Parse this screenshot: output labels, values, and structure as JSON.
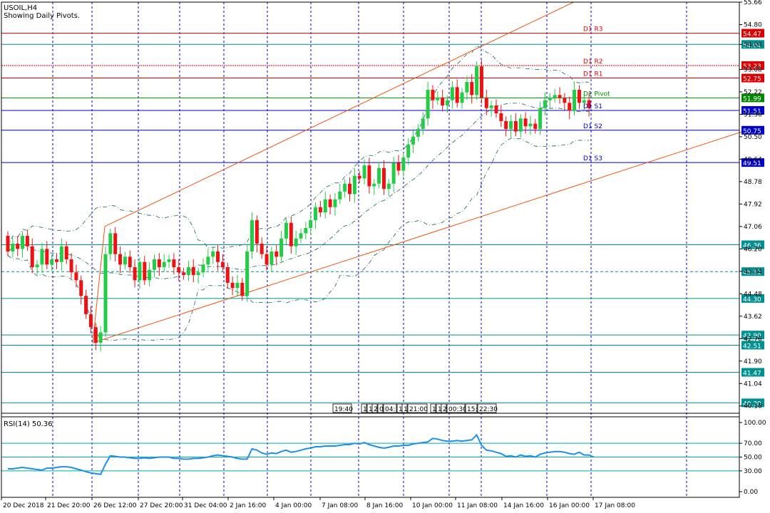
{
  "header": {
    "symbol_line": "USOIL,H4",
    "subtitle": "Showing Daily Pivots."
  },
  "colors": {
    "background": "#ffffff",
    "frame": "#000000",
    "grid": "#0000cc",
    "bull": "#22cc44",
    "bear": "#ee1111",
    "channel": "#ee5511",
    "bands": "#1f5f5f",
    "pivot_resistance": "#dd0000",
    "pivot_pivot": "#008800",
    "pivot_support": "#0000cc",
    "hline": "#009090",
    "rsi_line": "#1e8fe8",
    "rsi_level": "#00aaaa"
  },
  "chart_data": [
    {
      "type": "candlestick",
      "ylim": [
        39.9,
        55.66
      ],
      "price_ticks": [
        "55.66",
        "54.80",
        "54.04",
        "53.08",
        "52.22",
        "51.36",
        "50.50",
        "49.64",
        "48.78",
        "47.92",
        "47.06",
        "46.20",
        "45.34",
        "44.48",
        "43.62",
        "42.76",
        "41.90",
        "41.04",
        "40.18"
      ],
      "x_labels": [
        "20 Dec 2018",
        "21 Dec 20:00",
        "26 Dec 12:00",
        "27 Dec 20:00",
        "31 Dec 04:00",
        "2 Jan 16:00",
        "4 Jan 00:00",
        "7 Jan 08:00",
        "8 Jan 16:00",
        "10 Jan 00:00",
        "11 Jan 08:00",
        "14 Jan 16:00",
        "16 Jan 00:00",
        "17 Jan 08:00"
      ],
      "session_separators": 12,
      "pivots": [
        {
          "name": "D1 R3",
          "value": 54.47,
          "kind": "resistance",
          "label": "54.47"
        },
        {
          "name": "D1 R2",
          "value": 53.23,
          "kind": "resistance",
          "label": "53.23"
        },
        {
          "name": "D1 R1",
          "value": 52.75,
          "kind": "resistance",
          "label": "52.75"
        },
        {
          "name": "D1 Pivot",
          "value": 51.99,
          "kind": "pivot",
          "label": "51.99"
        },
        {
          "name": "D1 S1",
          "value": 51.51,
          "kind": "support",
          "label": "51.51"
        },
        {
          "name": "D1 S2",
          "value": 50.75,
          "kind": "support",
          "label": "50.75"
        },
        {
          "name": "D1 S3",
          "value": 49.51,
          "kind": "support",
          "label": "49.51"
        }
      ],
      "hlines": [
        {
          "value": 54.04,
          "label": "54.04",
          "style": "solid"
        },
        {
          "value": 46.36,
          "label": "46.36",
          "style": "solid"
        },
        {
          "value": 45.33,
          "label": "45.33",
          "style": "dashed"
        },
        {
          "value": 44.3,
          "label": "44.30",
          "style": "solid"
        },
        {
          "value": 42.9,
          "label": "42.90",
          "style": "solid"
        },
        {
          "value": 42.51,
          "label": "42.51",
          "style": "solid"
        },
        {
          "value": 41.47,
          "label": "41.47",
          "style": "solid"
        },
        {
          "value": 40.3,
          "label": "40.30",
          "style": "solid"
        }
      ],
      "channel": {
        "upper": [
          {
            "bar": 0,
            "price": 47.06
          },
          {
            "bar": 96,
            "price": 55.66
          }
        ],
        "lower": [
          {
            "bar": 0,
            "price": 42.6
          },
          {
            "bar": 121,
            "price": 50.8
          }
        ]
      },
      "candles": [
        [
          46.7,
          46.1
        ],
        [
          46.1,
          46.4
        ],
        [
          46.4,
          46.2
        ],
        [
          46.2,
          46.7
        ],
        [
          46.7,
          46.3
        ],
        [
          46.3,
          45.5
        ],
        [
          45.5,
          45.6
        ],
        [
          45.6,
          46.2
        ],
        [
          46.2,
          45.6
        ],
        [
          45.6,
          45.8
        ],
        [
          45.8,
          45.7
        ],
        [
          45.7,
          46.3
        ],
        [
          46.3,
          45.8
        ],
        [
          45.8,
          45.3
        ],
        [
          45.3,
          45.0
        ],
        [
          45.0,
          44.4
        ],
        [
          44.4,
          43.7
        ],
        [
          43.7,
          43.2
        ],
        [
          43.2,
          42.6
        ],
        [
          42.6,
          43.0
        ],
        [
          43.0,
          46.0
        ],
        [
          46.0,
          46.8
        ],
        [
          46.8,
          46.0
        ],
        [
          46.0,
          45.6
        ],
        [
          45.6,
          45.9
        ],
        [
          45.9,
          45.5
        ],
        [
          45.5,
          45.0
        ],
        [
          45.0,
          45.7
        ],
        [
          45.7,
          45.0
        ],
        [
          45.0,
          45.4
        ],
        [
          45.4,
          45.8
        ],
        [
          45.8,
          45.5
        ],
        [
          45.5,
          45.7
        ],
        [
          45.7,
          45.8
        ],
        [
          45.8,
          45.5
        ],
        [
          45.5,
          45.3
        ],
        [
          45.3,
          45.2
        ],
        [
          45.2,
          45.5
        ],
        [
          45.5,
          45.2
        ],
        [
          45.2,
          45.3
        ],
        [
          45.3,
          45.6
        ],
        [
          45.6,
          45.9
        ],
        [
          45.9,
          46.1
        ],
        [
          46.1,
          45.7
        ],
        [
          45.7,
          45.5
        ],
        [
          45.5,
          44.9
        ],
        [
          44.9,
          44.7
        ],
        [
          44.7,
          44.9
        ],
        [
          44.9,
          44.4
        ],
        [
          44.4,
          46.1
        ],
        [
          46.1,
          47.3
        ],
        [
          47.3,
          46.4
        ],
        [
          46.4,
          46.0
        ],
        [
          46.0,
          45.6
        ],
        [
          45.6,
          46.1
        ],
        [
          46.1,
          45.9
        ],
        [
          45.9,
          46.6
        ],
        [
          46.6,
          47.2
        ],
        [
          47.2,
          46.3
        ],
        [
          46.3,
          46.6
        ],
        [
          46.6,
          46.8
        ],
        [
          46.8,
          47.0
        ],
        [
          47.0,
          47.3
        ],
        [
          47.3,
          47.8
        ],
        [
          47.8,
          47.6
        ],
        [
          47.6,
          48.1
        ],
        [
          48.1,
          47.8
        ],
        [
          47.8,
          48.1
        ],
        [
          48.1,
          48.4
        ],
        [
          48.4,
          48.7
        ],
        [
          48.7,
          48.3
        ],
        [
          48.3,
          49.0
        ],
        [
          49.0,
          48.9
        ],
        [
          48.9,
          49.4
        ],
        [
          49.4,
          48.6
        ],
        [
          48.6,
          48.7
        ],
        [
          48.7,
          49.3
        ],
        [
          49.3,
          48.5
        ],
        [
          48.5,
          48.7
        ],
        [
          48.7,
          49.5
        ],
        [
          49.5,
          49.2
        ],
        [
          49.2,
          49.7
        ],
        [
          49.7,
          50.2
        ],
        [
          50.2,
          50.5
        ],
        [
          50.5,
          50.8
        ],
        [
          50.8,
          51.2
        ],
        [
          51.2,
          52.3
        ],
        [
          52.3,
          51.9
        ],
        [
          51.9,
          52.0
        ],
        [
          52.0,
          51.7
        ],
        [
          51.7,
          51.9
        ],
        [
          51.9,
          52.4
        ],
        [
          52.4,
          51.8
        ],
        [
          51.8,
          52.2
        ],
        [
          52.2,
          52.6
        ],
        [
          52.6,
          52.1
        ],
        [
          52.1,
          53.2
        ],
        [
          53.2,
          52.0
        ],
        [
          52.0,
          51.6
        ],
        [
          51.6,
          51.7
        ],
        [
          51.7,
          51.4
        ],
        [
          51.4,
          51.1
        ],
        [
          51.1,
          50.8
        ],
        [
          50.8,
          51.1
        ],
        [
          51.1,
          50.7
        ],
        [
          50.7,
          51.2
        ],
        [
          51.2,
          50.9
        ],
        [
          50.9,
          51.0
        ],
        [
          51.0,
          50.8
        ],
        [
          50.8,
          51.6
        ],
        [
          51.6,
          51.9
        ],
        [
          51.9,
          52.0
        ],
        [
          52.0,
          52.1
        ],
        [
          52.1,
          52.0
        ],
        [
          52.0,
          51.8
        ],
        [
          51.8,
          51.5
        ],
        [
          51.5,
          52.3
        ],
        [
          52.3,
          51.8
        ],
        [
          51.8,
          51.9
        ],
        [
          51.9,
          51.6
        ]
      ]
    },
    {
      "type": "line",
      "title": "RSI(14) 50.36",
      "ylim": [
        0,
        100
      ],
      "ticks": [
        "100.00",
        "70.00",
        "50.00",
        "30.00",
        "0.00"
      ],
      "levels": [
        70,
        50,
        30
      ],
      "values": [
        33,
        33,
        34,
        35,
        34,
        33,
        32,
        31,
        34,
        34,
        35,
        36,
        36,
        35,
        33,
        31,
        29,
        27,
        26,
        25,
        40,
        52,
        51,
        50,
        50,
        49,
        48,
        48,
        49,
        48,
        49,
        50,
        50,
        50,
        48,
        48,
        47,
        47,
        48,
        48,
        49,
        50,
        52,
        53,
        52,
        51,
        50,
        48,
        47,
        47,
        62,
        60,
        56,
        54,
        56,
        55,
        58,
        60,
        57,
        58,
        60,
        62,
        63,
        65,
        65,
        66,
        66,
        66,
        67,
        68,
        68,
        70,
        69,
        71,
        68,
        66,
        64,
        63,
        64,
        66,
        66,
        67,
        67,
        69,
        70,
        71,
        72,
        77,
        76,
        74,
        73,
        73,
        74,
        73,
        74,
        75,
        82,
        67,
        60,
        59,
        57,
        55,
        51,
        52,
        50,
        53,
        51,
        52,
        50,
        54,
        56,
        57,
        58,
        58,
        57,
        55,
        54,
        57,
        53,
        53,
        50
      ]
    }
  ]
}
